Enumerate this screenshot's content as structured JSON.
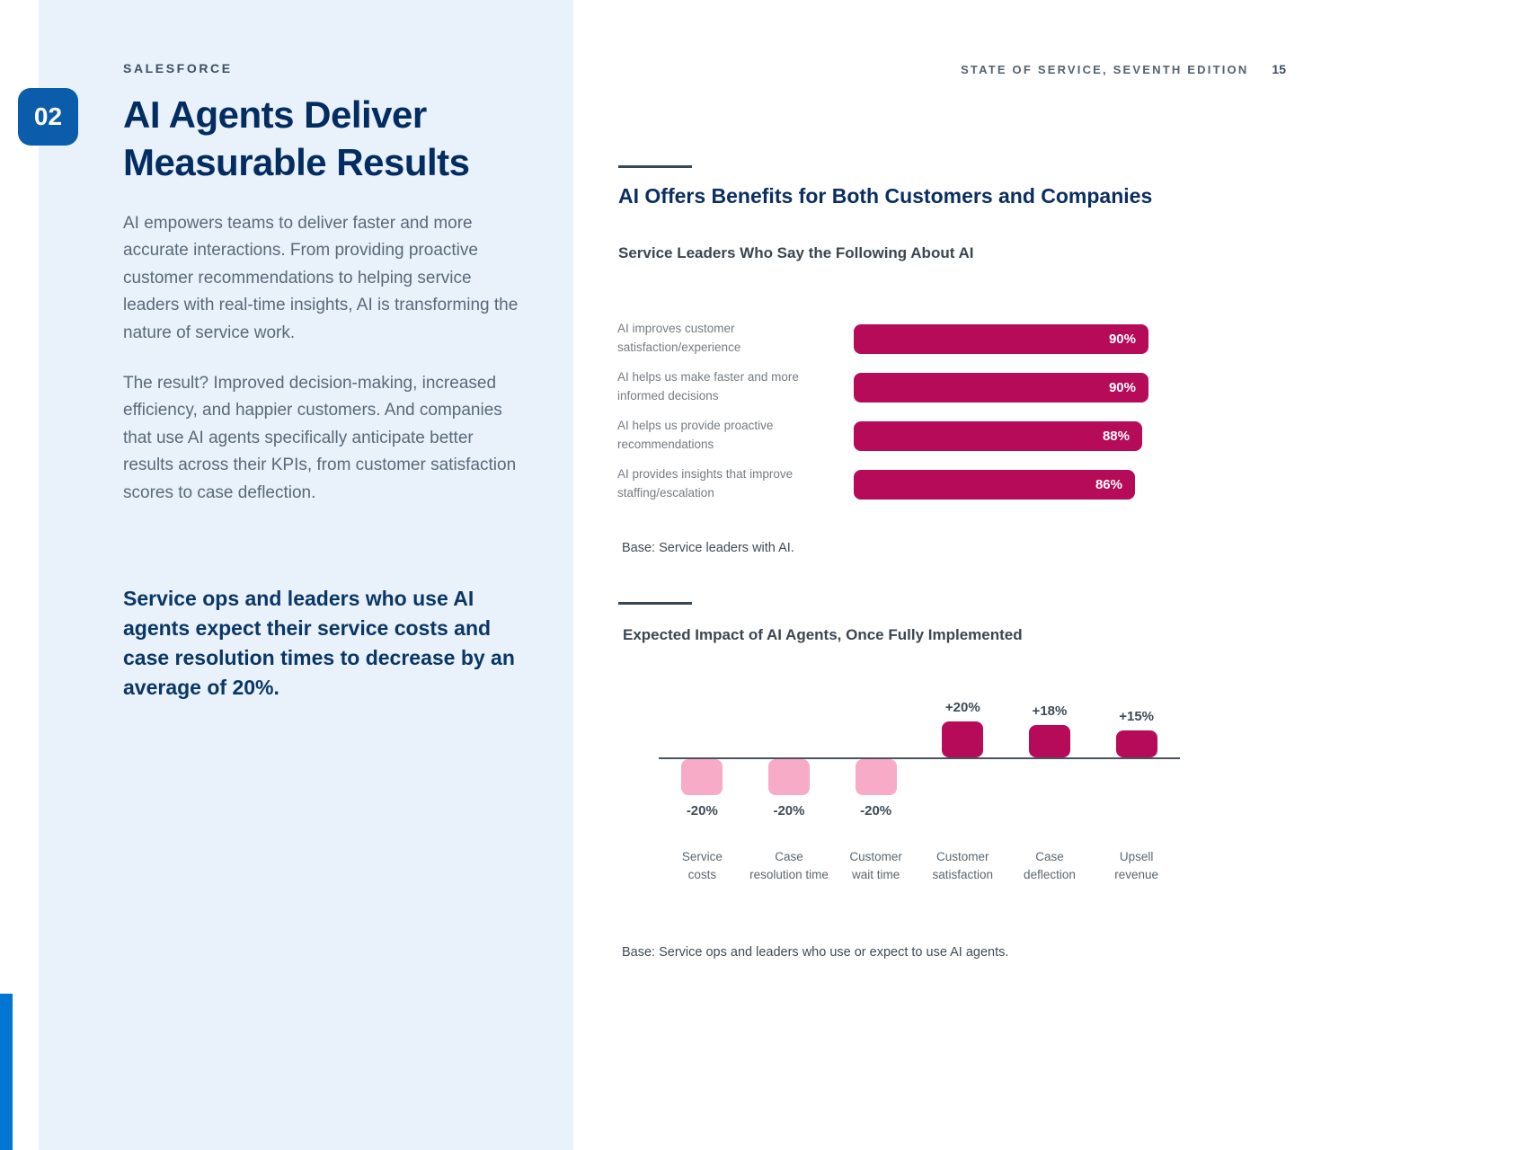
{
  "page": {
    "brand": "SALESFORCE",
    "header_right": "STATE OF SERVICE, SEVENTH EDITION",
    "page_number": "15",
    "section_number": "02"
  },
  "left": {
    "title": "AI Agents Deliver Measurable Results",
    "paragraph1": "AI empowers teams to deliver faster and more accurate interactions. From providing proactive customer recommendations to helping service leaders with real-time insights, AI is transforming the nature of service work.",
    "paragraph2": "The result? Improved decision-making, increased efficiency, and happier customers. And companies that use AI agents specifically anticipate better results across their KPIs, from customer satisfaction scores to case deflection.",
    "callout": "Service ops and leaders who use AI agents expect their service costs and case resolution times to decrease by an average of 20%."
  },
  "right": {
    "section_heading": "AI Offers Benefits for Both Customers and Companies"
  },
  "colors": {
    "accent_crimson": "#b60b59",
    "accent_pink": "#f8abc6",
    "navy": "#032d60",
    "panel_blue": "#e9f1fb",
    "badge_blue": "#0b5cab",
    "stripe_blue": "#0176d3"
  },
  "chart_data": [
    {
      "type": "bar",
      "orientation": "horizontal",
      "title": "Service Leaders Who Say the Following About AI",
      "categories": [
        "AI improves customer satisfaction/experience",
        "AI helps us make faster and more informed decisions",
        "AI helps us provide proactive recommendations",
        "AI provides insights that improve staffing/escalation"
      ],
      "values": [
        90,
        90,
        88,
        86
      ],
      "value_labels": [
        "90%",
        "90%",
        "88%",
        "86%"
      ],
      "xlim": [
        0,
        90
      ],
      "grid": false,
      "legend": "none",
      "note": "Base: Service leaders with AI."
    },
    {
      "type": "bar",
      "orientation": "vertical-diverging",
      "title": "Expected Impact of AI Agents, Once Fully Implemented",
      "categories": [
        "Service\ncosts",
        "Case\nresolution time",
        "Customer\nwait time",
        "Customer\nsatisfaction",
        "Case\ndeflection",
        "Upsell\nrevenue"
      ],
      "values": [
        -20,
        -20,
        -20,
        20,
        18,
        15
      ],
      "value_labels": [
        "-20%",
        "-20%",
        "-20%",
        "+20%",
        "+18%",
        "+15%"
      ],
      "ylim": [
        -25,
        25
      ],
      "grid": false,
      "legend": "none",
      "note": "Base: Service ops and leaders who use or expect to use AI agents."
    }
  ]
}
